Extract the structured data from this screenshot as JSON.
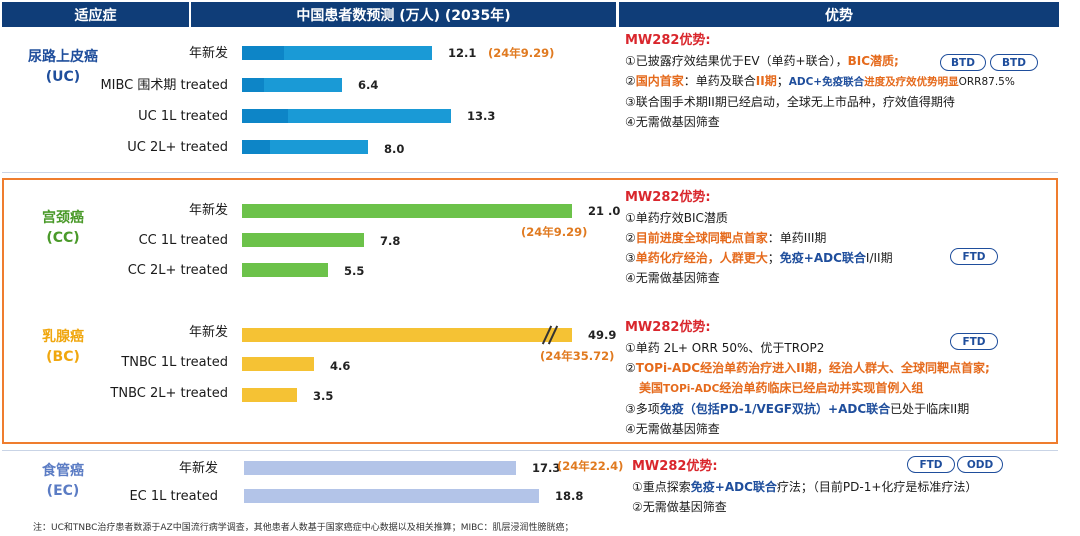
{
  "headers": {
    "indication": "适应症",
    "chart": "中国患者数预测 (万人) (2035年)",
    "advantage": "优势"
  },
  "chart_data": {
    "type": "bar",
    "title": "中国患者数预测 (万人) (2035年)",
    "unit": "万人",
    "groups": [
      {
        "name": "尿路上皮癌",
        "abbr": "(UC)",
        "rows": [
          {
            "label": "年新发",
            "value": 12.1,
            "value_text": "12.1",
            "note": "(24年9.29)"
          },
          {
            "label": "MIBC 围术期 treated",
            "value": 6.4,
            "value_text": "6.4"
          },
          {
            "label": "UC 1L treated",
            "value": 13.3,
            "value_text": "13.3"
          },
          {
            "label": "UC 2L+ treated",
            "value": 8.0,
            "value_text": "8.0"
          }
        ]
      },
      {
        "name": "宫颈癌",
        "abbr": "(CC)",
        "rows": [
          {
            "label": "年新发",
            "value": 21.0,
            "value_text": "21 .0",
            "note": "(24年9.29)"
          },
          {
            "label": "CC 1L treated",
            "value": 7.8,
            "value_text": "7.8"
          },
          {
            "label": "CC 2L+ treated",
            "value": 5.5,
            "value_text": "5.5"
          }
        ]
      },
      {
        "name": "乳腺癌",
        "abbr": "(BC)",
        "rows": [
          {
            "label": "年新发",
            "value": 49.9,
            "value_text": "49.9",
            "note": "(24年35.72)",
            "axis_break": true
          },
          {
            "label": "TNBC 1L treated",
            "value": 4.6,
            "value_text": "4.6"
          },
          {
            "label": "TNBC 2L+ treated",
            "value": 3.5,
            "value_text": "3.5"
          }
        ]
      },
      {
        "name": "食管癌",
        "abbr": "(EC)",
        "rows": [
          {
            "label": "年新发",
            "value": 17.3,
            "value_text": "17.3",
            "note": "(24年22.4)"
          },
          {
            "label": "EC 1L treated",
            "value": 18.8,
            "value_text": "18.8"
          }
        ]
      }
    ]
  },
  "advantages": {
    "uc": {
      "title": "MW282优势:",
      "l1a": "①已披露疗效结果优于EV（单药+联合），",
      "l1b": "BIC潜质;",
      "l2a": "②",
      "l2b": "国内首家",
      "l2c": "：单药及联合",
      "l2d": "II期",
      "l2e": "；",
      "l2f": "ADC+免疫联合",
      "l2g": "进度及疗效优势明显",
      "l2h": "ORR87.5%",
      "l3": "③联合围手术期II期已经启动，全球无上市品种，疗效值得期待",
      "l4": "④无需做基因筛查",
      "pills": [
        "BTD",
        "BTD"
      ]
    },
    "cc": {
      "title": "MW282优势:",
      "l1": "①单药疗效BIC潜质",
      "l2a": "②",
      "l2b": "目前进度全球同靶点首家",
      "l2c": "：单药III期",
      "l3a": "③",
      "l3b": "单药化疗经治，人群更大",
      "l3c": "；",
      "l3d": "免疫+ADC联合",
      "l3e": "I/II期",
      "l4": "④无需做基因筛查",
      "pills": [
        "FTD"
      ]
    },
    "bc": {
      "title": "MW282优势:",
      "l1": "①单药 2L+ ORR 50%、优于TROP2",
      "l2a": "②",
      "l2b": "TOPi-ADC经治单药治疗进入II期，经治人群大、全球同靶点首家;",
      "l3a": "美国",
      "l3b": "TOPi-ADC",
      "l3c": "经治单药临床已经启动并实现首例入组",
      "l4a": "③多项",
      "l4b": "免疫",
      "l4c": "（包括PD-1/VEGF双抗）",
      "l4d": "+ADC联合",
      "l4e": "已处于临床II期",
      "l5": "④无需做基因筛查",
      "pills": [
        "FTD"
      ]
    },
    "ec": {
      "title": "MW282优势:",
      "l1a": "①重点探索",
      "l1b": "免疫+ADC联合",
      "l1c": "疗法；（目前PD-1+化疗是标准疗法）",
      "l2": "②无需做基因筛查",
      "pills": [
        "FTD",
        "ODD"
      ]
    }
  },
  "footnote": "注：UC和TNBC治疗患者数源于AZ中国流行病学调查，其他患者人数基于国家癌症中心数据以及相关推算；MIBC：肌层浸润性膀胱癌；",
  "colors": {
    "header": "#0f3d78",
    "uc": "#1a9ad6",
    "uc_dark": "#0d85c7",
    "cc": "#6cc24a",
    "bc": "#f5c234",
    "ec": "#b3c4e8",
    "note": "#e07a20",
    "frame": "#ef7d2e"
  }
}
